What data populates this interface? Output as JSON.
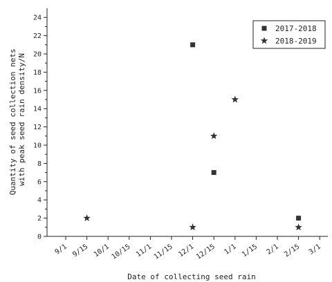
{
  "chart_data": {
    "type": "scatter",
    "title": "",
    "xlabel": "Date of collecting seed rain",
    "ylabel_lines": [
      "Quantity of seed collection nets",
      "with peak seed rain density/N"
    ],
    "x_ticks": [
      "9/1",
      "9/15",
      "10/1",
      "10/15",
      "11/1",
      "11/15",
      "12/1",
      "12/15",
      "1/1",
      "1/15",
      "2/1",
      "2/15",
      "3/1"
    ],
    "y_ticks": [
      0,
      2,
      4,
      6,
      8,
      10,
      12,
      14,
      16,
      18,
      20,
      22,
      24
    ],
    "ylim": [
      0,
      25
    ],
    "grid": false,
    "legend_position": "top-right",
    "series": [
      {
        "name": "2017-2018",
        "marker": "square",
        "color": "#333333",
        "points": [
          {
            "x": "12/1",
            "y": 21
          },
          {
            "x": "12/15",
            "y": 7
          },
          {
            "x": "2/15",
            "y": 2
          }
        ]
      },
      {
        "name": "2018-2019",
        "marker": "star",
        "color": "#333333",
        "points": [
          {
            "x": "9/15",
            "y": 2
          },
          {
            "x": "12/1",
            "y": 1
          },
          {
            "x": "12/15",
            "y": 11
          },
          {
            "x": "1/1",
            "y": 15
          },
          {
            "x": "2/15",
            "y": 1
          }
        ]
      }
    ]
  }
}
